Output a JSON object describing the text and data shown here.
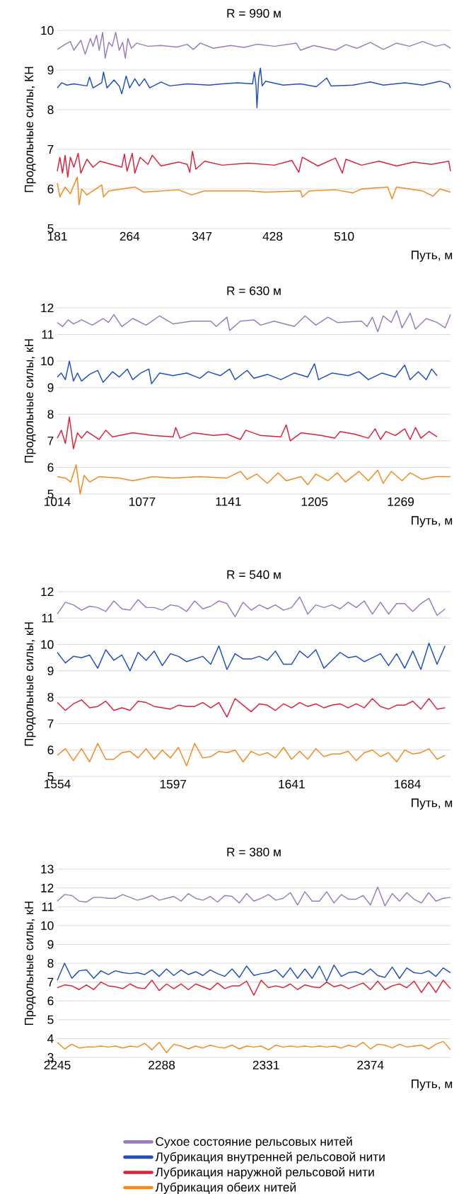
{
  "chart_data": [
    {
      "type": "line",
      "title": "R = 990 м",
      "xlabel": "Путь, м",
      "ylabel": "Продольные силы, КН",
      "xlim": [
        181,
        632
      ],
      "ylim": [
        5,
        10
      ],
      "xticks": [
        181,
        264,
        347,
        428,
        510
      ],
      "yticks": [
        5,
        6,
        7,
        8,
        9,
        10
      ],
      "grid": "y",
      "series": [
        {
          "color": "#9b7bbf",
          "x": [
            181,
            190,
            196,
            200,
            208,
            213,
            219,
            222,
            226,
            229,
            233,
            236,
            240,
            244,
            248,
            252,
            256,
            259,
            262,
            266,
            272,
            285,
            300,
            318,
            330,
            337,
            345,
            360,
            380,
            395,
            410,
            430,
            455,
            460,
            475,
            500,
            512,
            525,
            540,
            555,
            570,
            585,
            600,
            615,
            625,
            632
          ],
          "values": [
            9.52,
            9.65,
            9.72,
            9.5,
            9.75,
            9.4,
            9.8,
            9.6,
            9.88,
            9.5,
            9.95,
            9.3,
            9.7,
            9.6,
            9.95,
            9.5,
            9.7,
            9.3,
            9.8,
            9.55,
            9.68,
            9.6,
            9.62,
            9.58,
            9.65,
            9.52,
            9.68,
            9.55,
            9.62,
            9.57,
            9.65,
            9.6,
            9.68,
            9.5,
            9.62,
            9.5,
            9.64,
            9.55,
            9.7,
            9.52,
            9.68,
            9.6,
            9.72,
            9.6,
            9.65,
            9.55
          ]
        },
        {
          "color": "#1f4fbf",
          "x": [
            181,
            186,
            192,
            200,
            215,
            218,
            222,
            232,
            234,
            238,
            246,
            252,
            255,
            260,
            264,
            270,
            275,
            281,
            287,
            300,
            310,
            330,
            355,
            370,
            388,
            405,
            407,
            409,
            410,
            412,
            414,
            416,
            420,
            440,
            460,
            478,
            490,
            495,
            520,
            540,
            555,
            580,
            600,
            620,
            630,
            632
          ],
          "values": [
            8.55,
            8.68,
            8.62,
            8.65,
            8.6,
            8.82,
            8.55,
            8.68,
            8.95,
            8.55,
            8.75,
            8.6,
            8.4,
            8.85,
            8.55,
            8.78,
            8.6,
            8.78,
            8.55,
            8.7,
            8.6,
            8.65,
            8.62,
            8.65,
            8.68,
            8.65,
            8.95,
            8.6,
            8.05,
            8.8,
            9.05,
            8.6,
            8.72,
            8.62,
            8.65,
            8.58,
            8.8,
            8.6,
            8.62,
            8.7,
            8.62,
            8.68,
            8.62,
            8.72,
            8.65,
            8.55
          ]
        },
        {
          "color": "#e0203a",
          "x": [
            181,
            184,
            187,
            190,
            193,
            196,
            200,
            205,
            208,
            215,
            222,
            230,
            255,
            258,
            261,
            267,
            270,
            276,
            285,
            290,
            300,
            320,
            330,
            333,
            336,
            340,
            350,
            370,
            400,
            430,
            450,
            458,
            462,
            480,
            500,
            508,
            512,
            530,
            550,
            570,
            590,
            610,
            630,
            632
          ],
          "values": [
            6.45,
            6.8,
            6.4,
            6.85,
            6.3,
            6.8,
            6.55,
            6.9,
            6.4,
            6.75,
            6.55,
            6.7,
            6.55,
            6.88,
            6.45,
            6.9,
            6.4,
            6.8,
            6.62,
            6.85,
            6.58,
            6.68,
            6.62,
            6.42,
            6.95,
            6.5,
            6.7,
            6.6,
            6.65,
            6.6,
            6.72,
            6.42,
            6.8,
            6.58,
            6.78,
            6.4,
            6.75,
            6.6,
            6.7,
            6.58,
            6.68,
            6.62,
            6.7,
            6.45
          ]
        },
        {
          "color": "#f28a1e",
          "x": [
            181,
            184,
            190,
            196,
            200,
            204,
            206,
            209,
            215,
            232,
            234,
            240,
            270,
            280,
            320,
            335,
            350,
            400,
            420,
            460,
            462,
            470,
            500,
            520,
            530,
            560,
            565,
            570,
            600,
            612,
            620,
            632
          ],
          "values": [
            6.15,
            5.8,
            6.05,
            5.88,
            6.1,
            6.3,
            5.6,
            6.0,
            5.85,
            6.1,
            5.8,
            5.95,
            6.05,
            5.92,
            5.98,
            5.85,
            5.95,
            5.95,
            5.92,
            5.95,
            5.8,
            5.95,
            5.98,
            5.9,
            6.0,
            6.05,
            5.75,
            6.05,
            5.95,
            5.82,
            6.0,
            5.92
          ]
        }
      ]
    },
    {
      "type": "line",
      "title": "R = 630 м",
      "xlabel": "Путь, м",
      "ylabel": "Продольные силы, кН",
      "xlim": [
        1014,
        1306
      ],
      "ylim": [
        5,
        12
      ],
      "xticks": [
        1014,
        1077,
        1141,
        1205,
        1269
      ],
      "yticks": [
        5,
        6,
        7,
        8,
        9,
        10,
        11,
        12
      ],
      "grid": "y",
      "series": [
        {
          "color": "#9b7bbf",
          "x": [
            1014,
            1018,
            1022,
            1026,
            1032,
            1040,
            1048,
            1052,
            1056,
            1062,
            1070,
            1080,
            1090,
            1100,
            1114,
            1128,
            1132,
            1140,
            1142,
            1150,
            1160,
            1165,
            1175,
            1190,
            1198,
            1206,
            1215,
            1222,
            1240,
            1244,
            1248,
            1252,
            1256,
            1262,
            1266,
            1270,
            1276,
            1280,
            1288,
            1296,
            1302,
            1306
          ],
          "values": [
            11.45,
            11.3,
            11.55,
            11.4,
            11.55,
            11.35,
            11.6,
            11.45,
            11.75,
            11.3,
            11.6,
            11.35,
            11.7,
            11.4,
            11.5,
            11.5,
            11.3,
            11.65,
            11.15,
            11.5,
            11.55,
            11.35,
            11.5,
            11.3,
            11.7,
            11.35,
            11.65,
            11.45,
            11.5,
            11.3,
            11.65,
            11.1,
            11.7,
            11.45,
            11.9,
            11.25,
            11.8,
            11.2,
            11.6,
            11.45,
            11.25,
            11.75
          ]
        },
        {
          "color": "#1f4fbf",
          "x": [
            1014,
            1017,
            1020,
            1023,
            1026,
            1029,
            1032,
            1038,
            1044,
            1048,
            1055,
            1060,
            1066,
            1070,
            1076,
            1082,
            1084,
            1090,
            1100,
            1110,
            1120,
            1126,
            1135,
            1142,
            1146,
            1155,
            1160,
            1170,
            1180,
            1190,
            1200,
            1205,
            1208,
            1218,
            1230,
            1238,
            1245,
            1255,
            1265,
            1272,
            1276,
            1282,
            1288,
            1292,
            1296
          ],
          "values": [
            9.4,
            9.55,
            9.3,
            10.0,
            9.25,
            9.55,
            9.25,
            9.5,
            9.65,
            9.2,
            9.6,
            9.4,
            9.7,
            9.3,
            9.55,
            9.7,
            9.15,
            9.55,
            9.45,
            9.55,
            9.35,
            9.6,
            9.45,
            9.7,
            9.3,
            9.65,
            9.35,
            9.5,
            9.3,
            9.55,
            9.4,
            9.9,
            9.3,
            9.55,
            9.45,
            9.6,
            9.3,
            9.55,
            9.4,
            9.85,
            9.3,
            9.6,
            9.3,
            9.7,
            9.45
          ]
        },
        {
          "color": "#e0203a",
          "x": [
            1014,
            1017,
            1020,
            1023,
            1026,
            1029,
            1032,
            1036,
            1045,
            1050,
            1055,
            1070,
            1085,
            1100,
            1102,
            1105,
            1115,
            1130,
            1140,
            1150,
            1154,
            1165,
            1180,
            1184,
            1187,
            1195,
            1210,
            1220,
            1224,
            1235,
            1245,
            1250,
            1254,
            1258,
            1265,
            1272,
            1276,
            1280,
            1284,
            1290,
            1296
          ],
          "values": [
            7.1,
            7.4,
            6.9,
            7.9,
            6.7,
            7.3,
            7.1,
            7.35,
            7.05,
            7.4,
            7.15,
            7.3,
            7.2,
            7.15,
            7.5,
            7.1,
            7.3,
            7.2,
            7.25,
            7.05,
            7.4,
            7.2,
            7.15,
            7.6,
            7.0,
            7.3,
            7.2,
            7.1,
            7.35,
            7.25,
            7.1,
            7.45,
            7.05,
            7.35,
            7.2,
            7.45,
            7.05,
            7.5,
            7.1,
            7.35,
            7.15
          ]
        },
        {
          "color": "#f28a1e",
          "x": [
            1014,
            1020,
            1024,
            1028,
            1031,
            1034,
            1038,
            1045,
            1060,
            1070,
            1085,
            1100,
            1120,
            1140,
            1150,
            1155,
            1162,
            1170,
            1178,
            1184,
            1195,
            1200,
            1206,
            1215,
            1222,
            1228,
            1238,
            1245,
            1252,
            1256,
            1262,
            1270,
            1276,
            1285,
            1295,
            1306
          ],
          "values": [
            5.65,
            5.6,
            5.45,
            6.1,
            5.0,
            5.7,
            5.45,
            5.65,
            5.6,
            5.5,
            5.65,
            5.6,
            5.65,
            5.6,
            5.85,
            5.55,
            5.75,
            5.4,
            5.8,
            5.5,
            5.65,
            5.35,
            5.75,
            5.5,
            5.8,
            5.45,
            5.85,
            5.5,
            5.9,
            5.4,
            5.85,
            5.5,
            5.8,
            5.55,
            5.65,
            5.65
          ]
        }
      ]
    },
    {
      "type": "line",
      "title": "R = 540 м",
      "xlabel": "Путь, м",
      "ylabel": "Продольные силы, кН",
      "xlim": [
        1554,
        1700
      ],
      "ylim": [
        5,
        12
      ],
      "xticks": [
        1554,
        1597,
        1641,
        1684
      ],
      "yticks": [
        5,
        6,
        7,
        8,
        9,
        10,
        11,
        12
      ],
      "grid": "y",
      "x": [
        1554,
        1557,
        1560,
        1563,
        1566,
        1569,
        1572,
        1575,
        1578,
        1581,
        1584,
        1587,
        1590,
        1593,
        1596,
        1599,
        1602,
        1605,
        1608,
        1611,
        1614,
        1617,
        1620,
        1623,
        1626,
        1629,
        1632,
        1635,
        1638,
        1641,
        1644,
        1647,
        1650,
        1653,
        1656,
        1659,
        1662,
        1665,
        1668,
        1671,
        1674,
        1677,
        1680,
        1683,
        1686,
        1689,
        1692,
        1695,
        1698
      ],
      "series": [
        {
          "color": "#9b7bbf",
          "values": [
            11.15,
            11.6,
            11.5,
            11.3,
            11.45,
            11.4,
            11.25,
            11.65,
            11.35,
            11.3,
            11.7,
            11.4,
            11.4,
            11.3,
            11.5,
            11.45,
            11.25,
            11.65,
            11.35,
            11.45,
            11.65,
            11.55,
            11.05,
            11.6,
            11.3,
            11.5,
            11.35,
            11.5,
            11.3,
            11.4,
            11.8,
            11.15,
            11.5,
            11.4,
            11.5,
            11.35,
            11.6,
            11.4,
            11.65,
            11.15,
            11.6,
            11.15,
            11.55,
            11.55,
            11.25,
            11.55,
            11.75,
            11.1,
            11.35
          ]
        },
        {
          "color": "#1f4fbf",
          "values": [
            9.7,
            9.3,
            9.55,
            9.5,
            9.6,
            9.1,
            9.8,
            9.4,
            9.6,
            9.0,
            9.7,
            9.4,
            9.75,
            9.2,
            9.65,
            9.55,
            9.35,
            9.45,
            9.55,
            9.25,
            9.95,
            9.05,
            9.65,
            9.45,
            9.45,
            9.55,
            9.4,
            9.75,
            9.25,
            9.25,
            9.75,
            9.5,
            9.8,
            9.1,
            9.4,
            9.7,
            9.5,
            9.55,
            9.35,
            9.5,
            9.65,
            9.2,
            9.65,
            9.1,
            9.75,
            9.05,
            10.05,
            9.25,
            9.95
          ]
        },
        {
          "color": "#e0203a",
          "values": [
            7.8,
            7.5,
            7.75,
            7.9,
            7.6,
            7.65,
            7.85,
            7.5,
            7.6,
            7.5,
            7.85,
            7.8,
            7.65,
            7.6,
            7.55,
            7.7,
            7.65,
            7.65,
            7.8,
            7.6,
            7.8,
            7.25,
            7.95,
            7.7,
            7.45,
            7.75,
            7.7,
            7.5,
            7.75,
            7.6,
            7.8,
            7.65,
            7.75,
            7.6,
            7.7,
            7.75,
            7.6,
            7.75,
            7.6,
            7.95,
            7.65,
            7.55,
            7.7,
            7.7,
            7.85,
            7.55,
            7.95,
            7.55,
            7.6
          ]
        },
        {
          "color": "#f28a1e",
          "values": [
            5.8,
            6.05,
            5.6,
            6.05,
            5.55,
            6.25,
            5.65,
            5.65,
            5.9,
            5.95,
            5.7,
            6.05,
            5.65,
            6.0,
            5.7,
            6.1,
            5.4,
            6.25,
            5.7,
            5.75,
            5.95,
            5.9,
            6.0,
            5.55,
            5.95,
            5.8,
            5.9,
            5.7,
            6.1,
            5.65,
            5.95,
            5.65,
            6.05,
            5.75,
            5.85,
            5.85,
            5.95,
            5.6,
            5.9,
            6.0,
            5.75,
            5.9,
            5.55,
            6.0,
            5.85,
            5.9,
            6.05,
            5.65,
            5.8
          ]
        }
      ]
    },
    {
      "type": "line",
      "title": "R = 380 м",
      "xlabel": "Путь, м",
      "ylabel": "Продольные силы, кН",
      "xlim": [
        2245,
        2407
      ],
      "ylim": [
        3,
        13
      ],
      "xticks": [
        2245,
        2288,
        2331,
        2374
      ],
      "yticks": [
        3,
        4,
        5,
        6,
        7,
        8,
        9,
        10,
        11,
        12,
        13
      ],
      "grid": "y",
      "legend": "bottom",
      "x": [
        2245,
        2248,
        2251,
        2254,
        2257,
        2260,
        2263,
        2266,
        2269,
        2272,
        2275,
        2278,
        2281,
        2284,
        2287,
        2290,
        2293,
        2296,
        2299,
        2302,
        2305,
        2308,
        2311,
        2314,
        2317,
        2320,
        2323,
        2326,
        2329,
        2332,
        2335,
        2338,
        2341,
        2344,
        2347,
        2350,
        2353,
        2356,
        2359,
        2362,
        2365,
        2368,
        2371,
        2374,
        2377,
        2380,
        2383,
        2386,
        2389,
        2392,
        2395,
        2398,
        2401,
        2404,
        2407
      ],
      "series": [
        {
          "name": "Сухое состояние рельсовых нитей",
          "color": "#9b7bbf",
          "values": [
            11.3,
            11.65,
            11.6,
            11.3,
            11.25,
            11.5,
            11.5,
            11.45,
            11.45,
            11.65,
            11.5,
            11.35,
            11.45,
            11.6,
            11.35,
            11.45,
            11.55,
            11.3,
            11.7,
            11.45,
            11.35,
            11.55,
            11.25,
            11.6,
            11.55,
            11.2,
            11.7,
            11.3,
            11.45,
            11.65,
            11.35,
            11.45,
            11.75,
            11.1,
            11.8,
            11.3,
            11.3,
            11.8,
            11.2,
            11.65,
            11.4,
            11.4,
            11.6,
            11.1,
            12.05,
            11.05,
            11.7,
            11.3,
            11.75,
            11.4,
            11.2,
            11.75,
            11.3,
            11.45,
            11.5
          ]
        },
        {
          "name": "Лубрикация внутренней рельсовой нити",
          "color": "#1f4fbf",
          "values": [
            7.1,
            8.0,
            7.2,
            7.6,
            7.65,
            7.2,
            7.6,
            7.4,
            7.6,
            7.5,
            7.45,
            7.5,
            7.4,
            7.65,
            7.3,
            7.7,
            7.35,
            7.65,
            7.4,
            7.55,
            7.35,
            7.65,
            7.45,
            7.3,
            7.7,
            7.25,
            7.85,
            7.35,
            7.45,
            7.5,
            7.65,
            7.25,
            7.75,
            7.2,
            7.7,
            7.2,
            7.85,
            7.05,
            7.9,
            7.3,
            7.5,
            7.55,
            7.4,
            7.7,
            7.35,
            7.25,
            7.8,
            7.2,
            7.75,
            7.5,
            7.45,
            7.6,
            7.3,
            7.75,
            7.5
          ]
        },
        {
          "name": "Лубрикация наружной рельсовой нити",
          "color": "#e0203a",
          "values": [
            6.7,
            6.85,
            6.8,
            6.6,
            6.85,
            6.6,
            7.0,
            6.8,
            6.75,
            6.65,
            6.9,
            6.7,
            6.65,
            7.1,
            6.55,
            6.9,
            6.65,
            6.9,
            6.6,
            6.9,
            6.75,
            6.6,
            6.95,
            6.65,
            6.8,
            6.8,
            7.05,
            6.3,
            7.1,
            6.7,
            6.8,
            6.7,
            6.9,
            6.6,
            6.85,
            6.75,
            6.7,
            7.0,
            6.75,
            6.85,
            6.65,
            6.8,
            6.95,
            6.6,
            7.05,
            6.6,
            6.8,
            6.9,
            6.7,
            7.05,
            6.45,
            7.0,
            6.45,
            7.1,
            6.65
          ]
        },
        {
          "name": "Лубрикация обеих нитей",
          "color": "#f28a1e",
          "values": [
            3.8,
            3.45,
            3.7,
            3.5,
            3.55,
            3.55,
            3.6,
            3.55,
            3.6,
            3.5,
            3.6,
            3.55,
            3.75,
            3.4,
            3.8,
            3.25,
            3.7,
            3.6,
            3.45,
            3.6,
            3.5,
            3.65,
            3.55,
            3.5,
            3.65,
            3.45,
            3.6,
            3.55,
            3.6,
            3.4,
            3.65,
            3.55,
            3.6,
            3.55,
            3.6,
            3.55,
            3.6,
            3.55,
            3.6,
            3.5,
            3.65,
            3.55,
            3.8,
            3.45,
            3.7,
            3.65,
            3.5,
            3.7,
            3.55,
            3.6,
            3.65,
            3.45,
            3.7,
            3.85,
            3.4
          ]
        }
      ]
    }
  ]
}
